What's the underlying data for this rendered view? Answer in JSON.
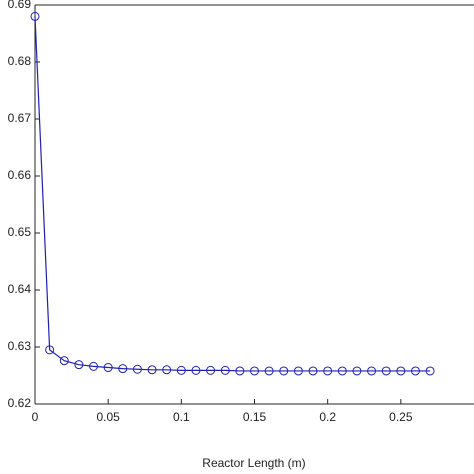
{
  "chart_data": {
    "type": "line",
    "x_label": "Reactor Length (m)",
    "series": [
      {
        "color": "#1f1fb4",
        "x": [
          0,
          0.01,
          0.02,
          0.03,
          0.04,
          0.05,
          0.06,
          0.07,
          0.08,
          0.09,
          0.1,
          0.11,
          0.12,
          0.13,
          0.14,
          0.15,
          0.16,
          0.17,
          0.18,
          0.19,
          0.2,
          0.21,
          0.22,
          0.23,
          0.24,
          0.25,
          0.26,
          0.27
        ],
        "values": [
          0.688,
          0.6295,
          0.6276,
          0.6269,
          0.6266,
          0.6264,
          0.6262,
          0.6261,
          0.626,
          0.626,
          0.6259,
          0.6259,
          0.6259,
          0.6259,
          0.6258,
          0.6258,
          0.6258,
          0.6258,
          0.6258,
          0.6258,
          0.6258,
          0.6258,
          0.6258,
          0.6258,
          0.6258,
          0.6258,
          0.6258,
          0.6258
        ]
      }
    ],
    "xlim": [
      0,
      0.3
    ],
    "xticks": [
      0,
      0.05,
      0.1,
      0.15,
      0.2,
      0.25
    ],
    "ylim": [
      0.62,
      0.69
    ],
    "yticks": [
      0.62,
      0.63,
      0.64,
      0.65,
      0.66,
      0.67,
      0.68,
      0.69
    ]
  }
}
